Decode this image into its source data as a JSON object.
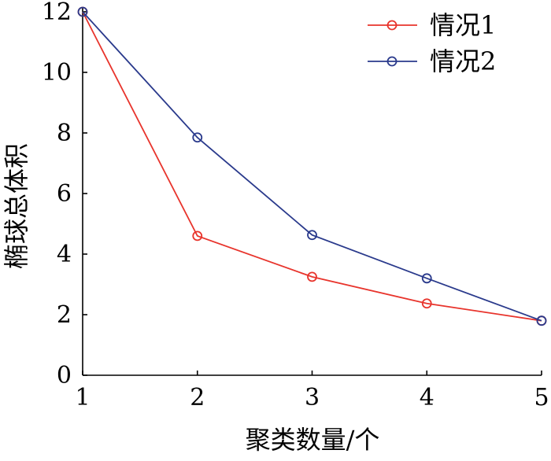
{
  "chart_data": {
    "type": "line",
    "title": "",
    "xlabel": "聚类数量/个",
    "ylabel": "椭球总体积",
    "x": [
      1,
      2,
      3,
      4,
      5
    ],
    "xlim": [
      1,
      5
    ],
    "ylim": [
      0,
      12
    ],
    "xticks": [
      "1",
      "2",
      "3",
      "4",
      "5"
    ],
    "yticks": [
      "0",
      "2",
      "4",
      "6",
      "8",
      "10",
      "12"
    ],
    "grid": false,
    "legend_position": "top-right",
    "series": [
      {
        "name": "情况1",
        "color": "#e8342c",
        "marker": "circle",
        "values": [
          12.0,
          4.6,
          3.25,
          2.37,
          1.8
        ]
      },
      {
        "name": "情况2",
        "color": "#2a3a8c",
        "marker": "circle",
        "values": [
          12.0,
          7.85,
          4.63,
          3.2,
          1.8
        ]
      }
    ]
  }
}
